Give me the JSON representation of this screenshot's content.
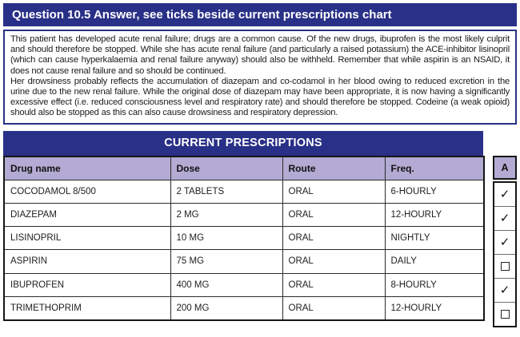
{
  "title": "Question 10.5 Answer, see ticks beside current prescriptions chart",
  "answer_text": {
    "paragraph1": "This patient has developed acute renal failure; drugs are a common cause. Of the new drugs, ibuprofen is the most likely culprit and should therefore be stopped. While she has acute renal failure (and particularly a raised potassium) the ACE-inhibitor lisinopril (which can cause hyperkalaemia and renal failure anyway) should also be withheld. Remember that while aspirin is an NSAID, it does not cause renal failure and so should be continued.",
    "paragraph2": "Her drowsiness probably reflects the accumulation of diazepam and co-codamol in her blood owing to reduced excretion in the urine due to the new renal failure. While the original dose of diazepam may have been appropriate, it is now having a significantly excessive effect (i.e. reduced consciousness level and respiratory rate) and should therefore be stopped. Codeine (a weak opioid) should also be stopped as this can also cause drowsiness and respiratory depression."
  },
  "prescriptions": {
    "title": "CURRENT PRESCRIPTIONS",
    "columns": [
      "Drug name",
      "Dose",
      "Route",
      "Freq."
    ],
    "rows": [
      {
        "drug": "COCODAMOL 8/500",
        "dose": "2 TABLETS",
        "route": "ORAL",
        "freq": "6-HOURLY",
        "ticked": true
      },
      {
        "drug": "DIAZEPAM",
        "dose": "2 MG",
        "route": "ORAL",
        "freq": "12-HOURLY",
        "ticked": true
      },
      {
        "drug": "LISINOPRIL",
        "dose": "10 MG",
        "route": "ORAL",
        "freq": "NIGHTLY",
        "ticked": true
      },
      {
        "drug": "ASPIRIN",
        "dose": "75 MG",
        "route": "ORAL",
        "freq": "DAILY",
        "ticked": false
      },
      {
        "drug": "IBUPROFEN",
        "dose": "400 MG",
        "route": "ORAL",
        "freq": "8-HOURLY",
        "ticked": true
      },
      {
        "drug": "TRIMETHOPRIM",
        "dose": "200 MG",
        "route": "ORAL",
        "freq": "12-HOURLY",
        "ticked": false
      }
    ]
  },
  "answer_column": {
    "header": "A",
    "tick_glyph": "✓"
  },
  "colors": {
    "navy": "#293087",
    "lavender": "#b3abd3",
    "ink": "#1d1d1d"
  }
}
